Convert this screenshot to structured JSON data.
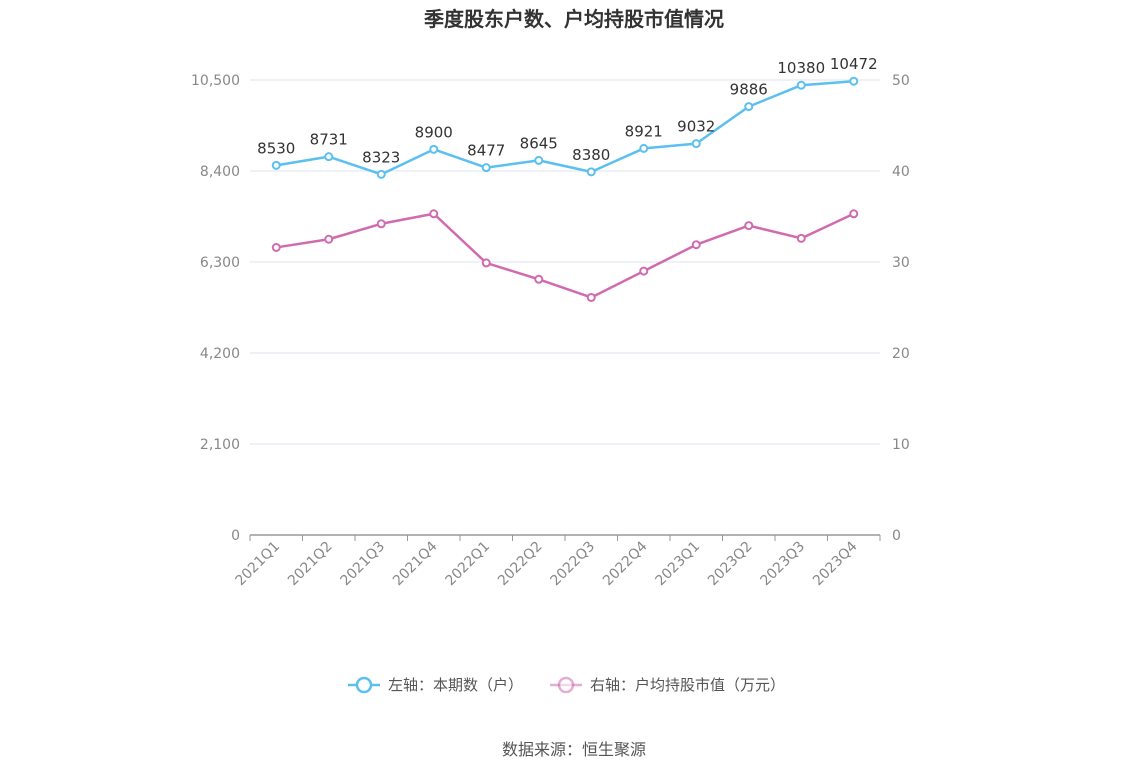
{
  "chart_data": {
    "type": "line",
    "title": "季度股东户数、户均持股市值情况",
    "categories": [
      "2021Q1",
      "2021Q2",
      "2021Q3",
      "2021Q4",
      "2022Q1",
      "2022Q2",
      "2022Q3",
      "2022Q4",
      "2023Q1",
      "2023Q2",
      "2023Q3",
      "2023Q4"
    ],
    "left_axis": {
      "ylim": [
        0,
        10500
      ],
      "ticks": [
        "0",
        "2,100",
        "4,200",
        "6,300",
        "8,400",
        "10,500"
      ],
      "tick_values": [
        0,
        2100,
        4200,
        6300,
        8400,
        10500
      ]
    },
    "right_axis": {
      "ylim": [
        0,
        50
      ],
      "ticks": [
        "0",
        "10",
        "20",
        "30",
        "40",
        "50"
      ],
      "tick_values": [
        0,
        10,
        20,
        30,
        40,
        50
      ]
    },
    "series": [
      {
        "name": "左轴：本期数（户）",
        "axis": "left",
        "color": "#5bc0f0",
        "values": [
          8530,
          8731,
          8323,
          8900,
          8477,
          8645,
          8380,
          8921,
          9032,
          9886,
          10380,
          10472
        ],
        "labels": [
          "8530",
          "8731",
          "8323",
          "8900",
          "8477",
          "8645",
          "8380",
          "8921",
          "9032",
          "9886",
          "10380",
          "10472"
        ]
      },
      {
        "name": "右轴：户均持股市值（万元）",
        "axis": "right",
        "color": "#d16bb0",
        "values": [
          31.6,
          32.5,
          34.2,
          35.3,
          29.9,
          28.1,
          26.1,
          29.0,
          31.9,
          34.0,
          32.6,
          35.3
        ]
      }
    ],
    "grid": true,
    "legend_position": "bottom"
  },
  "source": "数据来源：恒生聚源"
}
